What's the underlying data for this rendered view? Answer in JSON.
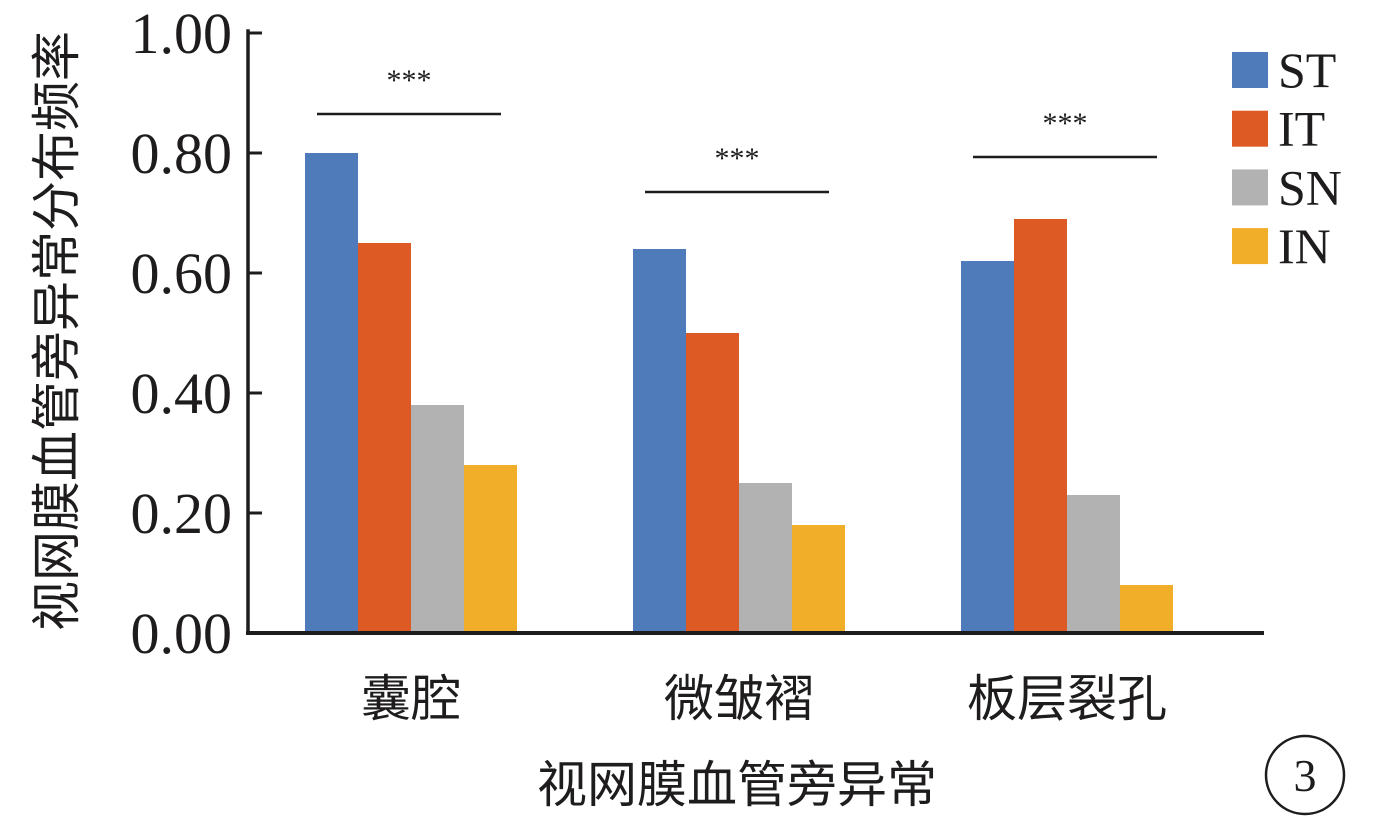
{
  "chart_data": {
    "type": "bar",
    "title": "",
    "xlabel": "视网膜血管旁异常",
    "ylabel": "视网膜血管旁异常分布频率",
    "categories": [
      "囊腔",
      "微皱褶",
      "板层裂孔"
    ],
    "series": [
      {
        "name": "ST",
        "color": "#4f7bba",
        "values": [
          0.8,
          0.64,
          0.62
        ]
      },
      {
        "name": "IT",
        "color": "#dd5a24",
        "values": [
          0.65,
          0.5,
          0.69
        ]
      },
      {
        "name": "SN",
        "color": "#b3b2b3",
        "values": [
          0.38,
          0.25,
          0.23
        ]
      },
      {
        "name": "IN",
        "color": "#f1ae28",
        "values": [
          0.28,
          0.18,
          0.08
        ]
      }
    ],
    "ylim": [
      0,
      1
    ],
    "yticks": [
      "0.00",
      "0.20",
      "0.40",
      "0.60",
      "0.80",
      "1.00"
    ],
    "grid": false,
    "legend_position": "top-right",
    "significance": [
      {
        "category": "囊腔",
        "label": "***"
      },
      {
        "category": "微皱褶",
        "label": "***"
      },
      {
        "category": "板层裂孔",
        "label": "***"
      }
    ]
  },
  "panel_label": "3"
}
